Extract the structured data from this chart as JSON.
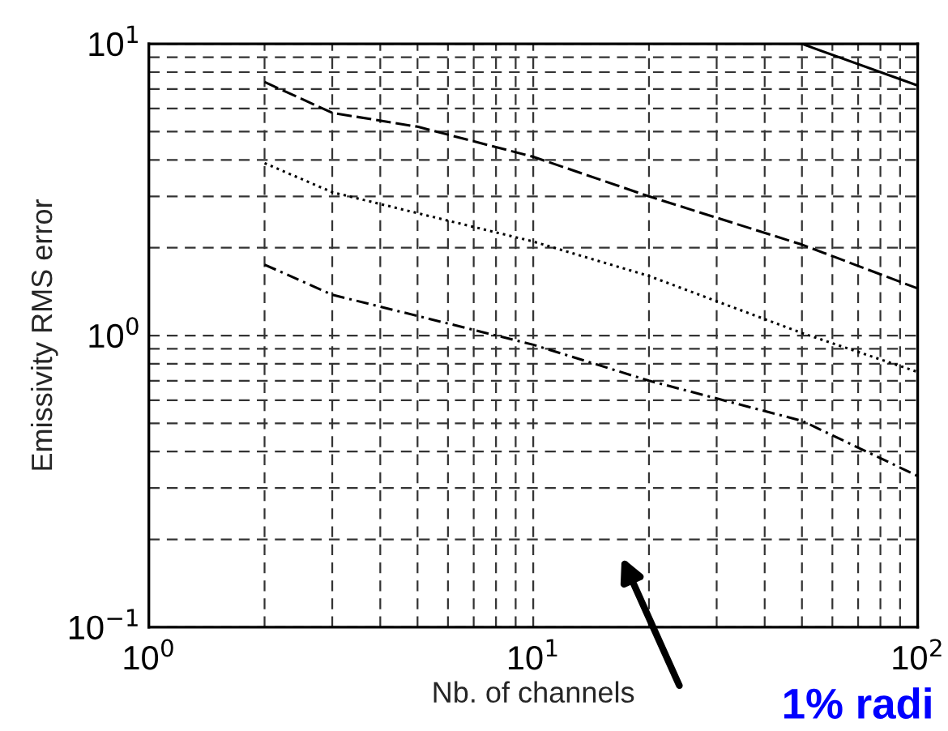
{
  "chart_data": {
    "type": "line",
    "xlabel": "Nb. of channels",
    "ylabel": "Emissivity RMS error",
    "log": "xy",
    "grid": true,
    "xlim": [
      1,
      100
    ],
    "ylim": [
      0.1,
      10
    ],
    "xticks": [
      {
        "value": 1,
        "label": "10$^{0}$"
      },
      {
        "value": 10,
        "label": "10$^{1}$"
      },
      {
        "value": 100,
        "label": "10$^{2}$"
      }
    ],
    "yticks": [
      {
        "value": 0.1,
        "label": "10$^{−1}$"
      },
      {
        "value": 1,
        "label": "10$^{0}$"
      },
      {
        "value": 10,
        "label": "10$^{1}$"
      }
    ],
    "series": [
      {
        "color": "#000000",
        "line_style": "solid",
        "x": [
          50,
          100
        ],
        "values": [
          10,
          7.2
        ]
      },
      {
        "color": "#000000",
        "line_style": "dashed",
        "x": [
          2,
          3,
          5,
          10,
          20,
          50,
          100
        ],
        "values": [
          7.4,
          5.8,
          5.2,
          4.1,
          3.0,
          2.05,
          1.45
        ]
      },
      {
        "color": "#000000",
        "line_style": "dotted",
        "x": [
          2,
          3,
          10,
          20,
          50,
          100
        ],
        "values": [
          3.9,
          3.1,
          2.1,
          1.6,
          1.02,
          0.75
        ]
      },
      {
        "color": "#000000",
        "line_style": "dashdot",
        "x": [
          2,
          3,
          10,
          20,
          50,
          100
        ],
        "values": [
          1.75,
          1.38,
          0.93,
          0.7,
          0.51,
          0.33
        ]
      }
    ],
    "annotations": [
      "1% radi"
    ]
  }
}
